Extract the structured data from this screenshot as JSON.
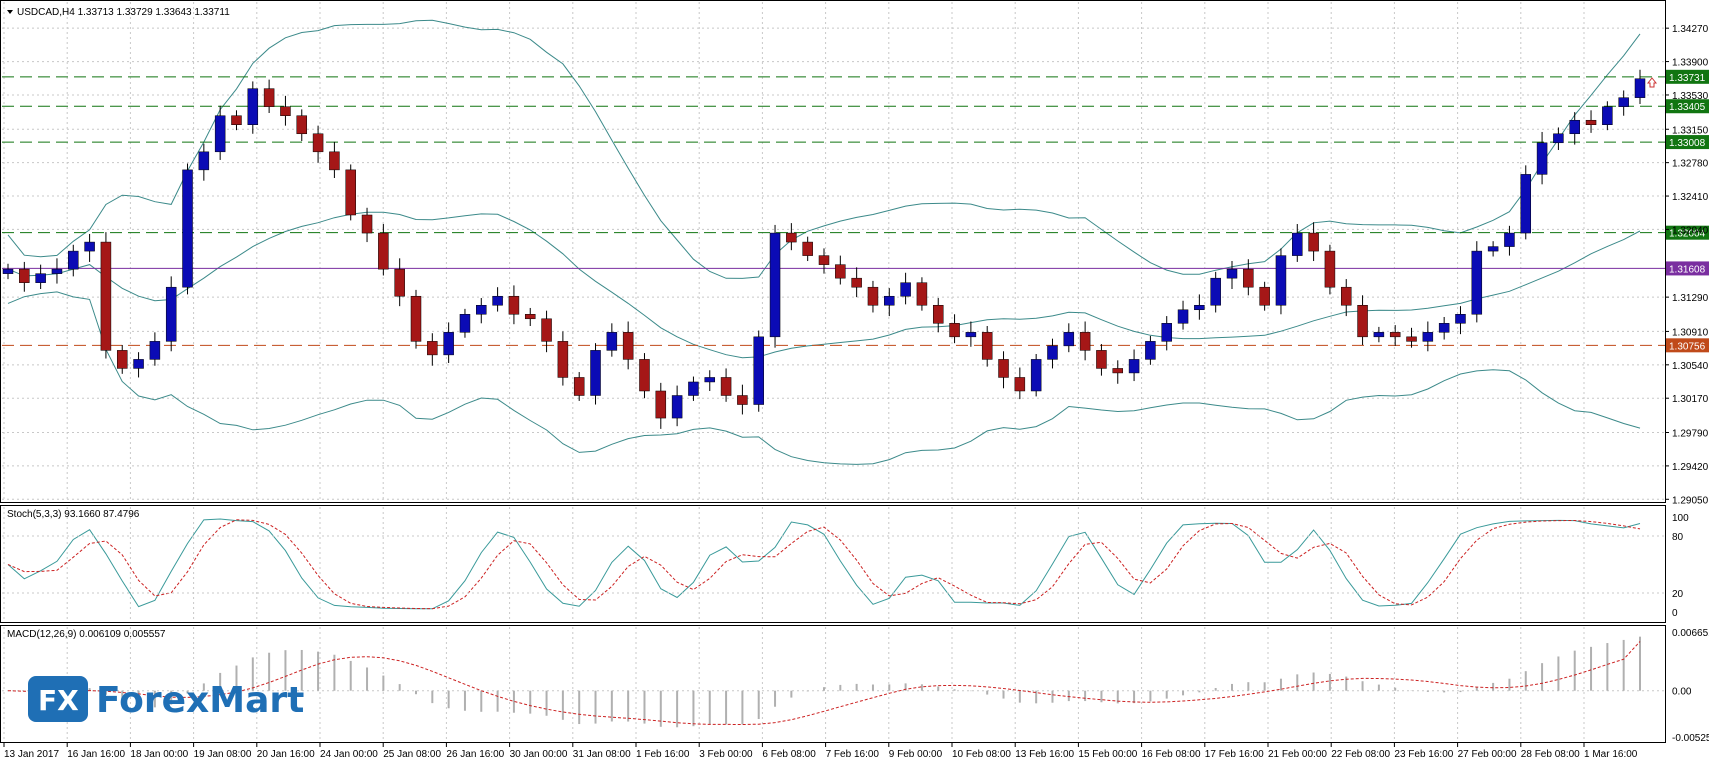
{
  "header": {
    "symbol_info": "USDCAD,H4  1.33713 1.33729 1.33643 1.33711",
    "stoch_label": "Stoch(5,3,3) 93.1660 87.4796",
    "macd_label": "MACD(12,26,9) 0.006109 0.005557"
  },
  "logo": {
    "text_main": "ForexMart",
    "mark_text": "FX"
  },
  "colors": {
    "bull_body": "#0b0bb5",
    "bear_body": "#a51717",
    "band": "#3c8a8a",
    "grid": "#c8c8c8",
    "green_level": "#117511",
    "purple_level": "#7a2ea0",
    "orange_level": "#c04a1a",
    "stoch_main": "#3a9a9a",
    "stoch_signal": "#cc2222",
    "macd_hist": "#b0b0b0",
    "macd_signal": "#cc2222",
    "logo_blue": "#1f6fb5"
  },
  "chart_data": {
    "type": "candlestick",
    "symbol": "USDCAD",
    "timeframe": "H4",
    "price_axis": {
      "ticks": [
        "1.34270",
        "1.33900",
        "1.33530",
        "1.33150",
        "1.32780",
        "1.32410",
        "1.32040",
        "1.31290",
        "1.30910",
        "1.30540",
        "1.30170",
        "1.29790",
        "1.29420",
        "1.29050"
      ],
      "range": [
        1.2902,
        1.3456
      ]
    },
    "time_axis": {
      "labels": [
        "13 Jan 2017",
        "16 Jan 16:00",
        "18 Jan 00:00",
        "19 Jan 08:00",
        "20 Jan 16:00",
        "24 Jan 00:00",
        "25 Jan 08:00",
        "26 Jan 16:00",
        "30 Jan 00:00",
        "31 Jan 08:00",
        "1 Feb 16:00",
        "3 Feb 00:00",
        "6 Feb 08:00",
        "7 Feb 16:00",
        "9 Feb 00:00",
        "10 Feb 08:00",
        "13 Feb 16:00",
        "15 Feb 00:00",
        "16 Feb 08:00",
        "17 Feb 16:00",
        "21 Feb 00:00",
        "22 Feb 08:00",
        "23 Feb 16:00",
        "27 Feb 00:00",
        "28 Feb 08:00",
        "1 Mar 16:00"
      ]
    },
    "levels": [
      {
        "label": "1.33731",
        "value": 1.33731,
        "style": "dashed",
        "color": "green"
      },
      {
        "label": "1.33405",
        "value": 1.33405,
        "style": "dashed",
        "color": "green"
      },
      {
        "label": "1.33008",
        "value": 1.33008,
        "style": "dashed",
        "color": "green"
      },
      {
        "label": "1.32004",
        "value": 1.32004,
        "style": "dashed",
        "color": "green"
      },
      {
        "label": "1.31608",
        "value": 1.31608,
        "style": "solid",
        "color": "purple"
      },
      {
        "label": "1.30756",
        "value": 1.30756,
        "style": "dashed",
        "color": "orange"
      }
    ],
    "close_path": [
      1.316,
      1.3145,
      1.3155,
      1.316,
      1.318,
      1.319,
      1.307,
      1.305,
      1.306,
      1.308,
      1.314,
      1.327,
      1.329,
      1.333,
      1.332,
      1.336,
      1.334,
      1.333,
      1.331,
      1.329,
      1.327,
      1.322,
      1.32,
      1.316,
      1.313,
      1.308,
      1.3065,
      1.309,
      1.311,
      1.312,
      1.313,
      1.311,
      1.3105,
      1.308,
      1.304,
      1.302,
      1.307,
      1.309,
      1.306,
      1.3025,
      1.2995,
      1.302,
      1.3035,
      1.304,
      1.302,
      1.301,
      1.3085,
      1.32,
      1.319,
      1.3175,
      1.3165,
      1.315,
      1.314,
      1.312,
      1.313,
      1.3145,
      1.312,
      1.31,
      1.3085,
      1.309,
      1.306,
      1.304,
      1.3025,
      1.306,
      1.3075,
      1.309,
      1.307,
      1.305,
      1.3045,
      1.306,
      1.308,
      1.31,
      1.3115,
      1.312,
      1.315,
      1.316,
      1.314,
      1.312,
      1.3175,
      1.32,
      1.318,
      1.314,
      1.312,
      1.3085,
      1.309,
      1.3085,
      1.308,
      1.309,
      1.31,
      1.311,
      1.318,
      1.3185,
      1.32,
      1.3265,
      1.33,
      1.331,
      1.3325,
      1.332,
      1.334,
      1.335,
      1.3371
    ],
    "bollinger_bands": "shown",
    "stochastic": {
      "name": "Stoch(5,3,3)",
      "k": 93.166,
      "d": 87.4796,
      "axis_ticks": [
        "100",
        "80",
        "20",
        "0"
      ]
    },
    "macd": {
      "name": "MACD(12,26,9)",
      "main": 0.006109,
      "signal": 0.005557,
      "axis_ticks": [
        "0.006651",
        "0.00",
        "-0.005259"
      ],
      "range": [
        -0.0058,
        0.0072
      ]
    }
  }
}
